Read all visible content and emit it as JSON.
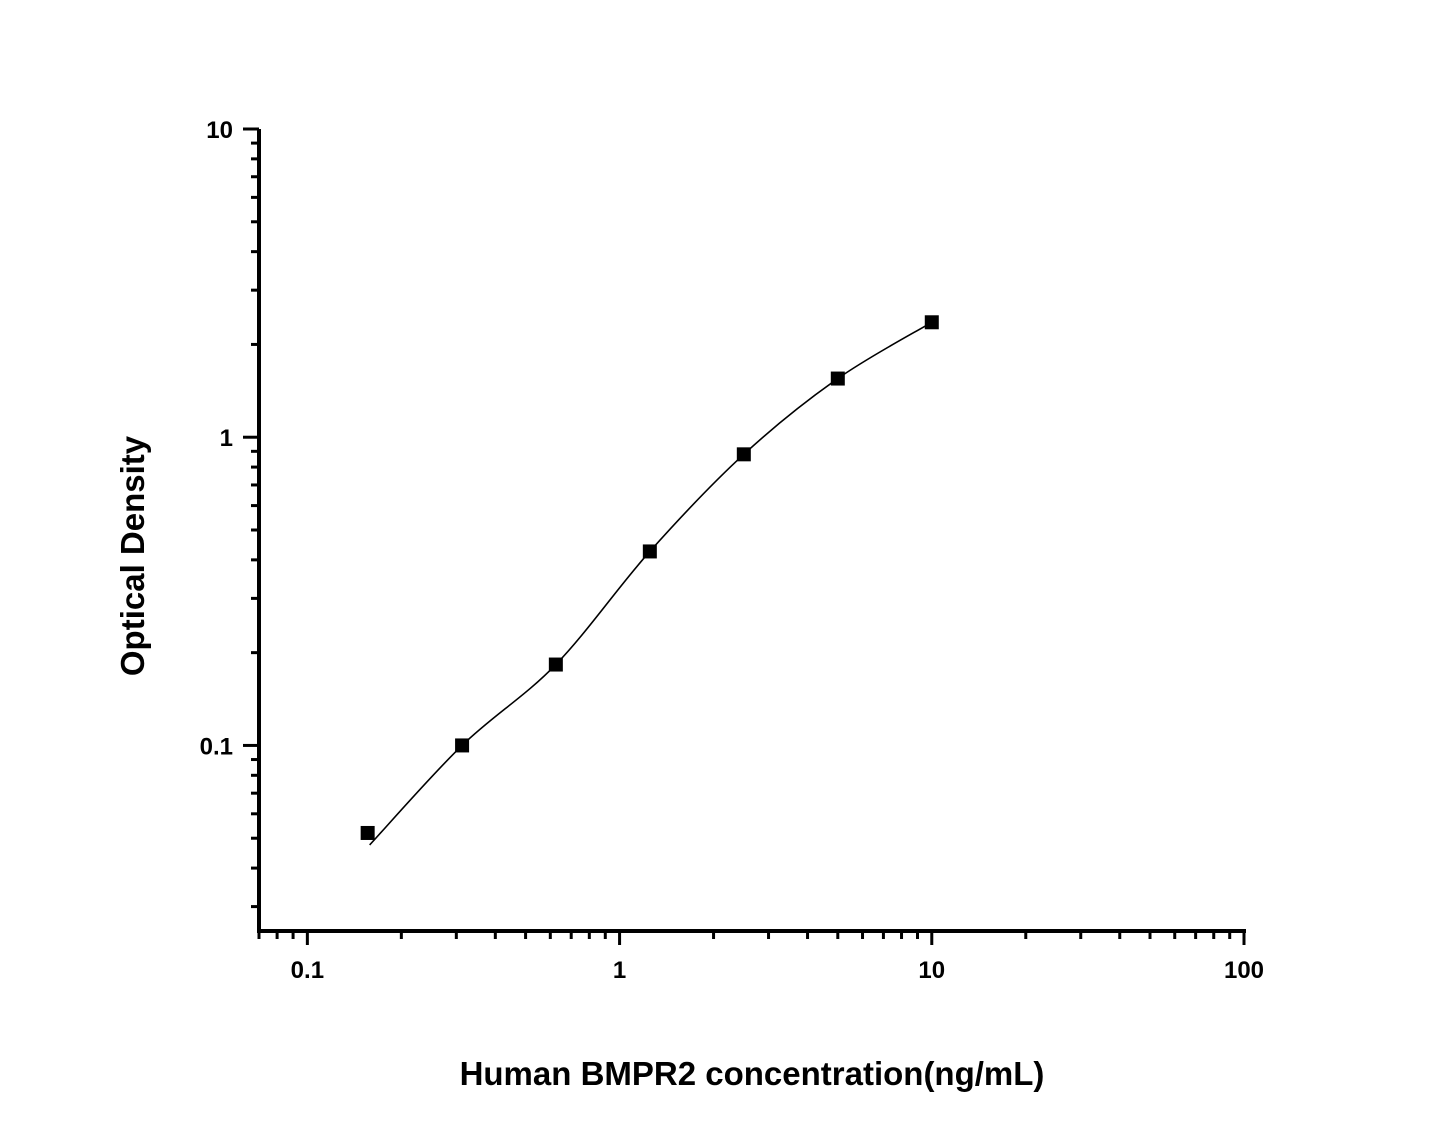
{
  "chart_data": {
    "type": "scatter",
    "xlabel": "Human BMPR2 concentration(ng/mL)",
    "ylabel": "Optical Density",
    "xscale": "log",
    "yscale": "log",
    "xlim": [
      0.07,
      100
    ],
    "ylim": [
      0.025,
      10
    ],
    "x_ticks": [
      "0.1",
      "1",
      "10",
      "100"
    ],
    "y_ticks": [
      "0.1",
      "1",
      "10"
    ],
    "grid": false,
    "legend": "none",
    "series": [
      {
        "x": [
          0.156,
          0.313,
          0.625,
          1.25,
          2.5,
          5,
          10
        ],
        "y": [
          0.052,
          0.1,
          0.183,
          0.426,
          0.88,
          1.55,
          2.36
        ],
        "marker": "square",
        "fit_line": true,
        "color": "#000000"
      }
    ]
  }
}
